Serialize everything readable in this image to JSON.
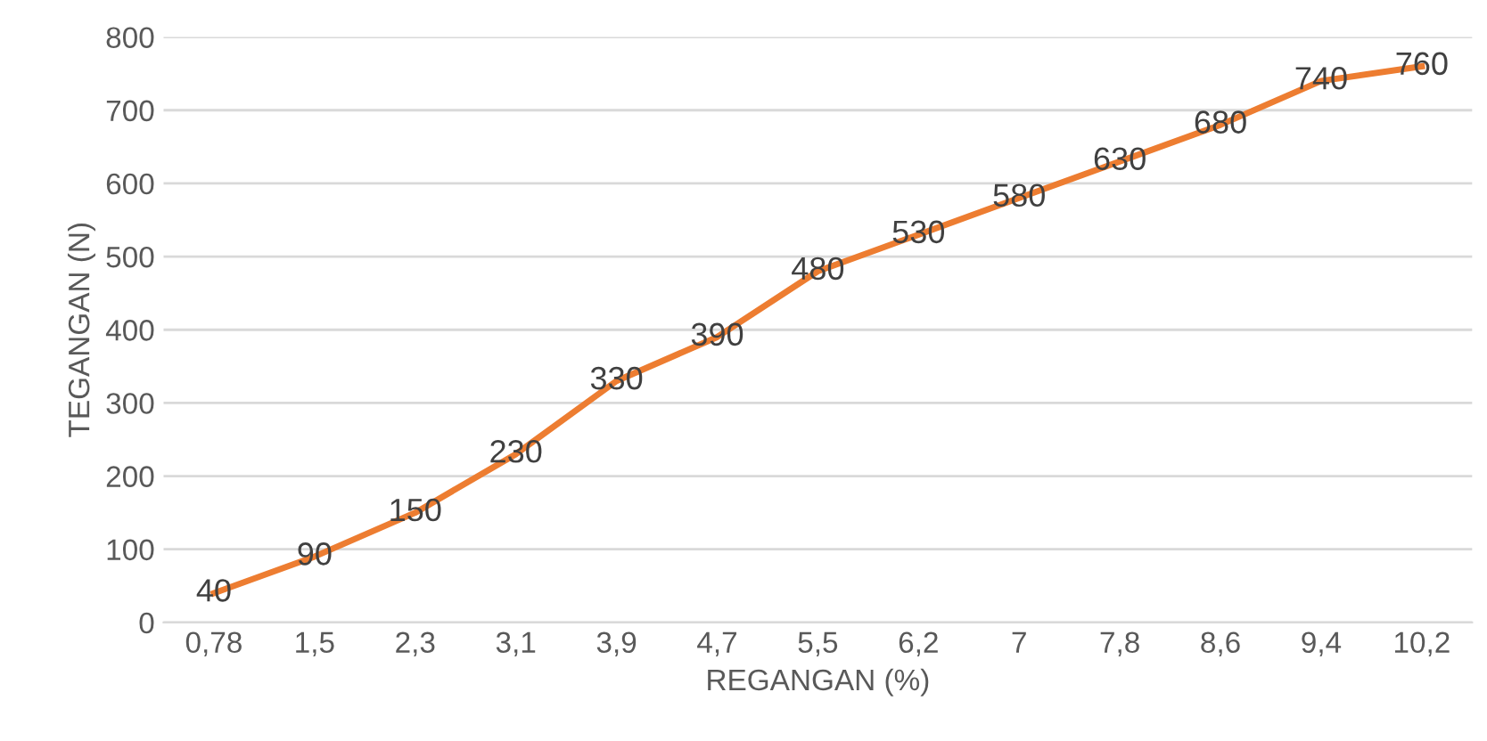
{
  "chart_data": {
    "type": "line",
    "xlabel": "REGANGAN (%)",
    "ylabel": "TEGANGAN (N)",
    "categories": [
      "0,78",
      "1,5",
      "2,3",
      "3,1",
      "3,9",
      "4,7",
      "5,5",
      "6,2",
      "7",
      "7,8",
      "8,6",
      "9,4",
      "10,2"
    ],
    "series": [
      {
        "color": "#ed7d31",
        "values": [
          40,
          90,
          150,
          230,
          330,
          390,
          480,
          530,
          580,
          630,
          680,
          740,
          760
        ]
      }
    ],
    "ylim": [
      0,
      800
    ],
    "yticks": [
      0,
      100,
      200,
      300,
      400,
      500,
      600,
      700,
      800
    ],
    "grid": "y",
    "data_labels": true,
    "marker": "none",
    "line_style": "solid"
  }
}
